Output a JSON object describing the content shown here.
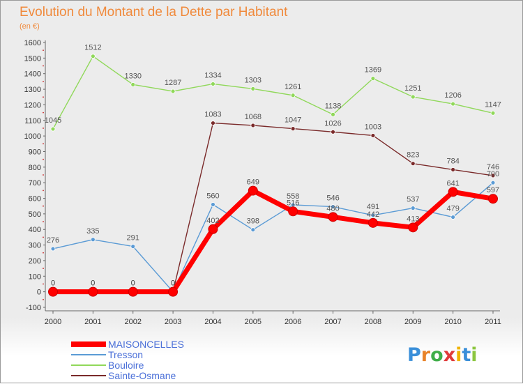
{
  "chart_data": {
    "type": "line",
    "title": "Evolution du Montant de la Dette par Habitant",
    "subtitle": "(en €)",
    "xlabel": "",
    "ylabel": "",
    "x": [
      "2000",
      "2001",
      "2002",
      "2003",
      "2004",
      "2005",
      "2006",
      "2007",
      "2008",
      "2009",
      "2010",
      "2011"
    ],
    "ylim": [
      -100,
      1600
    ],
    "yticks": [
      "-100",
      "0",
      "100",
      "200",
      "300",
      "400",
      "500",
      "600",
      "700",
      "800",
      "900",
      "1000",
      "1100",
      "1200",
      "1300",
      "1400",
      "1500",
      "1600"
    ],
    "grid": false,
    "legend_position": "bottom-left",
    "series": [
      {
        "name": "MAISONCELLES",
        "color": "#ff0000",
        "values": [
          0,
          0,
          0,
          0,
          402,
          649,
          516,
          480,
          442,
          413,
          641,
          597
        ],
        "labels": [
          "0",
          "0",
          "0",
          "0",
          "402",
          "649",
          "516",
          "480",
          "442",
          "413",
          "641",
          "597"
        ]
      },
      {
        "name": "Tresson",
        "color": "#5b9bd5",
        "values": [
          276,
          335,
          291,
          0,
          560,
          398,
          558,
          546,
          491,
          537,
          479,
          700
        ],
        "labels": [
          "276",
          "335",
          "291",
          "0",
          "560",
          "398",
          "558",
          "546",
          "491",
          "537",
          "479",
          "700"
        ]
      },
      {
        "name": "Bouloire",
        "color": "#90d85a",
        "values": [
          1045,
          1512,
          1330,
          1287,
          1334,
          1303,
          1261,
          1138,
          1369,
          1251,
          1206,
          1147
        ],
        "labels": [
          "1045",
          "1512",
          "1330",
          "1287",
          "1334",
          "1303",
          "1261",
          "1138",
          "1369",
          "1251",
          "1206",
          "1147"
        ]
      },
      {
        "name": "Sainte-Osmane",
        "color": "#7a2a2a",
        "values": [
          0,
          0,
          0,
          0,
          1083,
          1068,
          1047,
          1026,
          1003,
          823,
          784,
          746
        ],
        "labels": [
          "0",
          "0",
          "0",
          "0",
          "1083",
          "1068",
          "1047",
          "1026",
          "1003",
          "823",
          "784",
          "746"
        ]
      }
    ]
  },
  "logo": {
    "letters": [
      "P",
      "r",
      "o",
      "x",
      "i",
      "t",
      "i"
    ],
    "colors": [
      "#3a8fd9",
      "#e8832a",
      "#3fae49",
      "#e03a3a",
      "#f0b400",
      "#3a8fd9",
      "#8cc63f"
    ]
  }
}
